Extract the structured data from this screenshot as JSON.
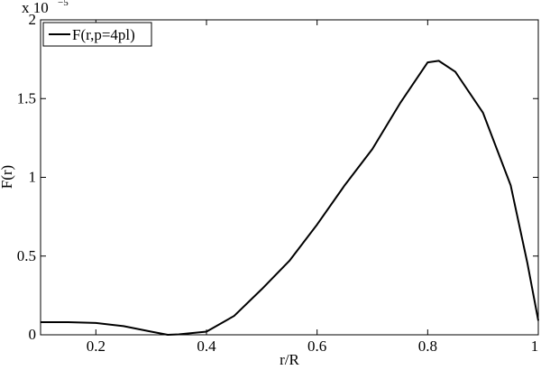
{
  "chart_data": {
    "type": "line",
    "y_multiplier": "x 10",
    "y_exponent": "−5",
    "xlabel": "r/R",
    "ylabel": "F(r)",
    "x": [
      0.1,
      0.15,
      0.2,
      0.25,
      0.3,
      0.33,
      0.35,
      0.4,
      0.45,
      0.5,
      0.55,
      0.6,
      0.65,
      0.7,
      0.75,
      0.8,
      0.82,
      0.85,
      0.9,
      0.95,
      0.98,
      1.0
    ],
    "series": [
      {
        "name": "F(r,p=4pl)",
        "color": "#000000",
        "values": [
          0.08,
          0.08,
          0.075,
          0.055,
          0.02,
          0.0,
          0.003,
          0.02,
          0.12,
          0.29,
          0.47,
          0.7,
          0.95,
          1.18,
          1.47,
          1.73,
          1.74,
          1.67,
          1.41,
          0.95,
          0.46,
          0.09
        ]
      }
    ],
    "xlim": [
      0.1,
      1
    ],
    "xticks": [
      0.2,
      0.4,
      0.6,
      0.8,
      1
    ],
    "ylim": [
      0,
      2
    ],
    "yticks": [
      0,
      0.5,
      1,
      1.5,
      2
    ],
    "grid": false,
    "legend": "upper left"
  }
}
